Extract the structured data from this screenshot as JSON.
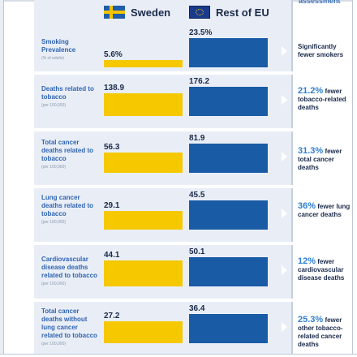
{
  "legend": {
    "sweden": "Sweden",
    "rest_of_eu": "Rest of EU"
  },
  "assessment_header": "assessment",
  "rows": [
    {
      "label": "Smoking Prevalence",
      "unit": "(% of adults)",
      "assessment_pct": "",
      "assessment_text": "Significantly fewer smokers"
    },
    {
      "label": "Deaths related to tobacco",
      "unit": "(per 100,000)",
      "assessment_pct": "21.2%",
      "assessment_text": "fewer tobacco-related deaths"
    },
    {
      "label": "Total cancer deaths related to tobacco",
      "unit": "(per 100,000)",
      "assessment_pct": "31.3%",
      "assessment_text": "fewer total cancer deaths"
    },
    {
      "label": "Lung cancer deaths related to tobacco",
      "unit": "(per 100,000)",
      "assessment_pct": "36%",
      "assessment_text": "fewer lung cancer deaths"
    },
    {
      "label": "Cardiovascular disease deaths related to tobacco",
      "unit": "(per 100,000)",
      "assessment_pct": "12%",
      "assessment_text": "fewer cardiovascular disease deaths"
    },
    {
      "label": "Total cancer deaths without lung cancer related to tobacco",
      "unit": "(per 100,000)",
      "assessment_pct": "25.3%",
      "assessment_text": "fewer other tobacco-related cancer deaths"
    }
  ],
  "chart_data": {
    "type": "bar",
    "categories": [
      "Smoking Prevalence",
      "Deaths related to tobacco",
      "Total cancer deaths related to tobacco",
      "Lung cancer deaths related to tobacco",
      "Cardiovascular disease deaths related to tobacco",
      "Total cancer deaths without lung cancer related to tobacco"
    ],
    "series": [
      {
        "name": "Sweden",
        "values": [
          5.6,
          138.9,
          56.3,
          29.1,
          44.1,
          27.2
        ],
        "labels": [
          "5.6%",
          "138.9",
          "56.3",
          "29.1",
          "44.1",
          "27.2"
        ],
        "color": "#f5c800"
      },
      {
        "name": "Rest of EU",
        "values": [
          23.5,
          176.2,
          81.9,
          45.5,
          50.1,
          36.4
        ],
        "labels": [
          "23.5%",
          "176.2",
          "81.9",
          "45.5",
          "50.1",
          "36.4"
        ],
        "color": "#1a5ba6"
      }
    ],
    "scale": "each row scaled independently to its larger value",
    "legend_position": "top",
    "grid": false
  }
}
